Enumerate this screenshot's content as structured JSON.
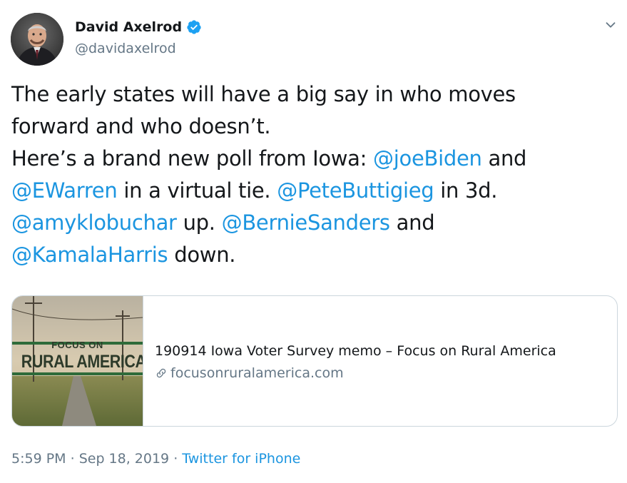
{
  "author": {
    "name": "David Axelrod",
    "handle": "@davidaxelrod",
    "verified": true
  },
  "tweet": {
    "lines": [
      [
        {
          "text": "The early states will have a big say in who moves",
          "type": "text"
        }
      ],
      [
        {
          "text": "forward and who doesn’t.",
          "type": "text"
        }
      ],
      [
        {
          "text": "Here’s a brand new poll from Iowa:  ",
          "type": "text"
        },
        {
          "text": "@joeBiden",
          "type": "mention"
        },
        {
          "text": " and",
          "type": "text"
        }
      ],
      [
        {
          "text": "@EWarren",
          "type": "mention"
        },
        {
          "text": " in a virtual tie.  ",
          "type": "text"
        },
        {
          "text": "@PeteButtigieg",
          "type": "mention"
        },
        {
          "text": " in 3d.",
          "type": "text"
        }
      ],
      [
        {
          "text": "@amyklobuchar",
          "type": "mention"
        },
        {
          "text": " up.  ",
          "type": "text"
        },
        {
          "text": "@BernieSanders",
          "type": "mention"
        },
        {
          "text": " and",
          "type": "text"
        }
      ],
      [
        {
          "text": "@KamalaHarris",
          "type": "mention"
        },
        {
          "text": " down.",
          "type": "text"
        }
      ]
    ]
  },
  "card": {
    "thumbnail_text_top": "FOCUS ON",
    "thumbnail_text_bottom": "RURAL AMERICA",
    "title": "190914 Iowa Voter Survey memo – Focus on Rural America",
    "domain": "focusonruralamerica.com"
  },
  "meta": {
    "time": "5:59 PM",
    "separator": " · ",
    "date": "Sep 18, 2019",
    "separator2": " · ",
    "source": "Twitter for iPhone"
  },
  "icons": {
    "verified": "verified-badge-icon",
    "caret": "chevron-down-icon",
    "link": "link-icon"
  },
  "colors": {
    "link": "#1b95e0",
    "secondary_text": "#657786",
    "primary_text": "#14171a",
    "verified_badge": "#1da1f2",
    "card_border": "#ccd6dd"
  }
}
